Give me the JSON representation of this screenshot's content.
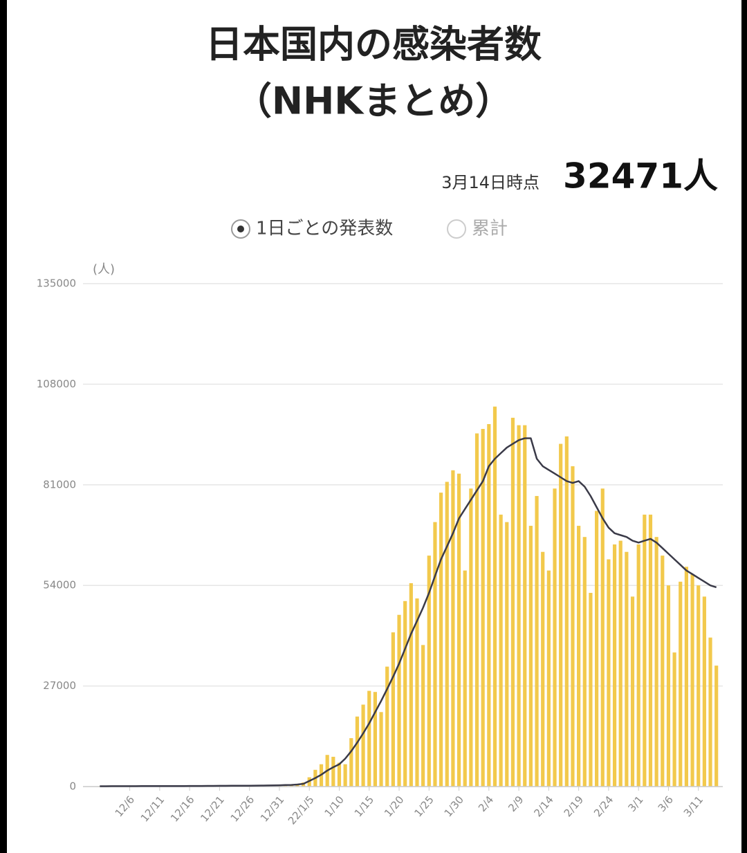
{
  "chart_data": {
    "type": "bar",
    "title": "日本国内の感染者数",
    "subtitle": "（NHKまとめ）",
    "as_of": "3月14日時点",
    "total": "32471人",
    "legend_options": [
      "1日ごとの発表数",
      "累計"
    ],
    "y_unit": "(人)",
    "categories": [
      null,
      null,
      null,
      null,
      null,
      "12/6",
      null,
      null,
      null,
      null,
      "12/11",
      null,
      null,
      null,
      null,
      "12/16",
      null,
      null,
      null,
      null,
      "12/21",
      null,
      null,
      null,
      null,
      "12/26",
      null,
      null,
      null,
      null,
      "12/31",
      null,
      null,
      null,
      null,
      "22/1/5",
      null,
      null,
      null,
      null,
      "1/10",
      null,
      null,
      null,
      null,
      "1/15",
      null,
      null,
      null,
      null,
      "1/20",
      null,
      null,
      null,
      null,
      "1/25",
      null,
      null,
      null,
      null,
      "1/30",
      null,
      null,
      null,
      null,
      "2/4",
      null,
      null,
      null,
      null,
      "2/9",
      null,
      null,
      null,
      null,
      "2/14",
      null,
      null,
      null,
      null,
      "2/19",
      null,
      null,
      null,
      null,
      "2/24",
      null,
      null,
      null,
      null,
      "3/1",
      null,
      null,
      null,
      null,
      "3/6",
      null,
      null,
      null,
      null,
      "3/11",
      null,
      null,
      null
    ],
    "series": [
      {
        "name": "1日ごとの発表数",
        "color": "#f2c94c",
        "values": [
          110,
          90,
          130,
          100,
          140,
          120,
          100,
          150,
          130,
          110,
          150,
          160,
          140,
          130,
          170,
          180,
          160,
          190,
          200,
          210,
          190,
          230,
          250,
          260,
          280,
          230,
          290,
          320,
          380,
          410,
          500,
          530,
          450,
          560,
          1100,
          2500,
          4500,
          6000,
          8500,
          8000,
          6400,
          6000,
          13000,
          18800,
          22000,
          25700,
          25400,
          20000,
          32200,
          41400,
          46100,
          49800,
          54600,
          50500,
          38000,
          62000,
          71000,
          78900,
          81800,
          84900,
          84000,
          58000,
          80000,
          94800,
          96000,
          97300,
          102000,
          73000,
          71000,
          99000,
          97000,
          97000,
          70000,
          78000,
          63000,
          58000,
          80000,
          92000,
          94000,
          86000,
          70000,
          67000,
          52000,
          74000,
          80000,
          61000,
          65000,
          66000,
          63000,
          51000,
          65000,
          73000,
          73000,
          67000,
          62000,
          54000,
          36000,
          55000,
          59000,
          57000,
          54000,
          51000,
          40000,
          32471
        ]
      },
      {
        "color": "#3a3a48",
        "values": [
          100,
          100,
          110,
          110,
          120,
          120,
          120,
          130,
          130,
          130,
          140,
          140,
          150,
          150,
          150,
          160,
          160,
          170,
          180,
          190,
          200,
          210,
          220,
          230,
          240,
          250,
          260,
          280,
          300,
          320,
          350,
          400,
          450,
          550,
          750,
          1500,
          2300,
          3200,
          4300,
          5200,
          6000,
          7500,
          9500,
          11800,
          14300,
          17000,
          20000,
          23000,
          26200,
          29500,
          33000,
          37000,
          41000,
          44500,
          48000,
          52000,
          56500,
          61000,
          64500,
          68000,
          72000,
          74500,
          77000,
          79500,
          82000,
          86000,
          88000,
          89500,
          91000,
          92000,
          93000,
          93500,
          93500,
          88000,
          86000,
          85000,
          84000,
          83000,
          82000,
          81500,
          82000,
          80500,
          78000,
          75000,
          72000,
          69500,
          68000,
          67500,
          67000,
          66000,
          65500,
          66000,
          66500,
          65500,
          64000,
          62500,
          61000,
          59500,
          58000,
          57000,
          56000,
          55000,
          54000,
          53500
        ]
      }
    ],
    "ylim": [
      0,
      135000
    ],
    "yticks": [
      0,
      27000,
      54000,
      81000,
      108000,
      135000
    ],
    "grid": true
  }
}
